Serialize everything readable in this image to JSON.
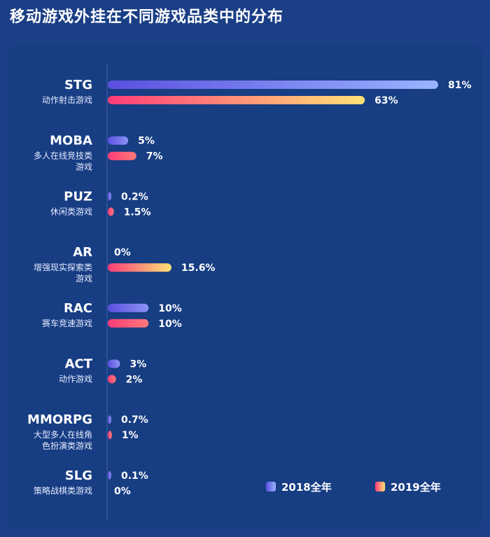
{
  "title": "移动游戏外挂在不同游戏品类中的分布",
  "chart_data": {
    "type": "bar",
    "orientation": "horizontal",
    "title": "移动游戏外挂在不同游戏品类中的分布",
    "unit": "%",
    "xlim": [
      0,
      81
    ],
    "categories": [
      {
        "name": "STG",
        "sub": [
          "动作射击游戏"
        ]
      },
      {
        "name": "MOBA",
        "sub": [
          "多人在线竞技类",
          "游戏"
        ]
      },
      {
        "name": "PUZ",
        "sub": [
          "休闲类游戏"
        ]
      },
      {
        "name": "AR",
        "sub": [
          "增强现实探索类",
          "游戏"
        ]
      },
      {
        "name": "RAC",
        "sub": [
          "赛车竞速游戏"
        ]
      },
      {
        "name": "ACT",
        "sub": [
          "动作游戏"
        ]
      },
      {
        "name": "MMORPG",
        "sub": [
          "大型多人在线角",
          "色扮演类游戏"
        ]
      },
      {
        "name": "SLG",
        "sub": [
          "策略战棋类游戏"
        ]
      }
    ],
    "series": [
      {
        "name": "2018全年",
        "color_start": "#5b4fe0",
        "color_end": "#9ab4ff",
        "values": [
          81,
          5,
          0.2,
          0,
          10,
          3,
          0.7,
          0.1
        ],
        "labels": [
          "81%",
          "5%",
          "0.2%",
          "0%",
          "10%",
          "3%",
          "0.7%",
          "0.1%"
        ]
      },
      {
        "name": "2019全年",
        "color_start": "#ff3c78",
        "color_end": "#ffe277",
        "values": [
          63,
          7,
          1.5,
          15.6,
          10,
          2,
          1,
          0
        ],
        "labels": [
          "63%",
          "7%",
          "1.5%",
          "15.6%",
          "10%",
          "2%",
          "1%",
          "0%"
        ]
      }
    ],
    "legend": {
      "position": "bottom-right"
    }
  }
}
